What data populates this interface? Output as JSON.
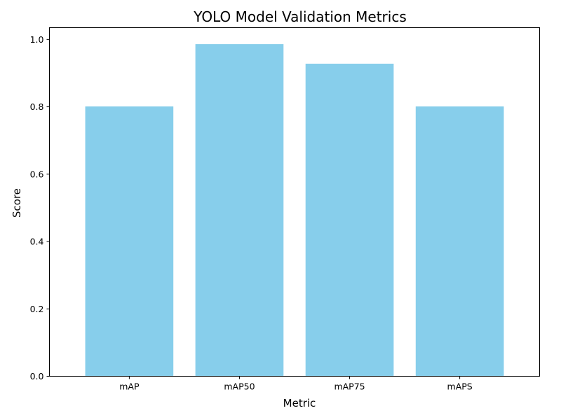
{
  "chart_data": {
    "type": "bar",
    "title": "YOLO Model Validation Metrics",
    "xlabel": "Metric",
    "ylabel": "Score",
    "categories": [
      "mAP",
      "mAP50",
      "mAP75",
      "mAPS"
    ],
    "values": [
      0.801,
      0.986,
      0.928,
      0.801
    ],
    "ylim": [
      0,
      1.035
    ],
    "yticks": [
      0.0,
      0.2,
      0.4,
      0.6,
      0.8,
      1.0
    ],
    "ytick_labels": [
      "0.0",
      "0.2",
      "0.4",
      "0.6",
      "0.8",
      "1.0"
    ],
    "bar_color": "#87CEEB",
    "grid": false,
    "legend": "none"
  }
}
